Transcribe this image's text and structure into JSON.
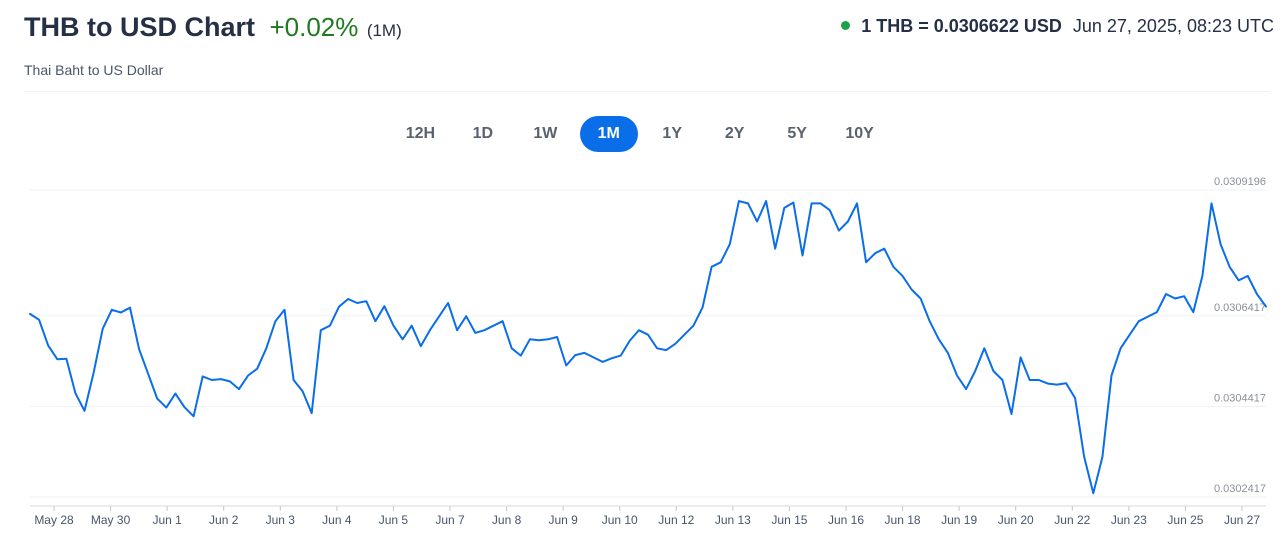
{
  "header": {
    "title": "THB to USD Chart",
    "change": "+0.02%",
    "period": "(1M)",
    "subtitle": "Thai Baht to US Dollar",
    "rate": "1 THB = 0.0306622 USD",
    "timestamp": "Jun 27, 2025, 08:23 UTC"
  },
  "colors": {
    "line": "#0a6ee8",
    "positive": "#1f7a1f",
    "status_dot": "#1aa34a",
    "active_tab": "#0a6ee8"
  },
  "tabs": [
    {
      "label": "12H",
      "active": false
    },
    {
      "label": "1D",
      "active": false
    },
    {
      "label": "1W",
      "active": false
    },
    {
      "label": "1M",
      "active": true
    },
    {
      "label": "1Y",
      "active": false
    },
    {
      "label": "2Y",
      "active": false
    },
    {
      "label": "5Y",
      "active": false
    },
    {
      "label": "10Y",
      "active": false
    }
  ],
  "chart_data": {
    "type": "line",
    "title": "",
    "xlabel": "",
    "ylabel": "",
    "grid": true,
    "y_ticks": [
      "0.0309196",
      "0.0306417",
      "0.0304417",
      "0.0302417"
    ],
    "y_tick_values": [
      0.0309196,
      0.0306417,
      0.0304417,
      0.0302417
    ],
    "ylim": [
      0.0302417,
      0.0309196
    ],
    "x_ticks": [
      "May 28",
      "May 30",
      "Jun 1",
      "Jun 2",
      "Jun 3",
      "Jun 4",
      "Jun 5",
      "Jun 7",
      "Jun 8",
      "Jun 9",
      "Jun 10",
      "Jun 12",
      "Jun 13",
      "Jun 15",
      "Jun 16",
      "Jun 18",
      "Jun 19",
      "Jun 20",
      "Jun 22",
      "Jun 23",
      "Jun 25",
      "Jun 27"
    ],
    "series": [
      {
        "values": [
          0.030646,
          0.030633,
          0.030576,
          0.030546,
          0.030547,
          0.030471,
          0.030432,
          0.030516,
          0.030613,
          0.030655,
          0.030649,
          0.03066,
          0.030568,
          0.030514,
          0.030459,
          0.030439,
          0.03047,
          0.03044,
          0.03042,
          0.030508,
          0.0305,
          0.030502,
          0.030497,
          0.03048,
          0.03051,
          0.030525,
          0.03057,
          0.03063,
          0.030655,
          0.0305,
          0.030475,
          0.030427,
          0.03061,
          0.03062,
          0.030662,
          0.030679,
          0.03067,
          0.030674,
          0.03063,
          0.030663,
          0.03062,
          0.03059,
          0.03062,
          0.030575,
          0.03061,
          0.03064,
          0.03067,
          0.03061,
          0.030641,
          0.030604,
          0.03061,
          0.03062,
          0.03063,
          0.03057,
          0.030554,
          0.03059,
          0.030588,
          0.03059,
          0.030595,
          0.030532,
          0.030555,
          0.03056,
          0.03055,
          0.03054,
          0.030548,
          0.030554,
          0.030587,
          0.03061,
          0.0306,
          0.03057,
          0.030566,
          0.03058,
          0.0306,
          0.03062,
          0.03066,
          0.03075,
          0.03076,
          0.0308,
          0.030895,
          0.03089,
          0.03085,
          0.030895,
          0.03079,
          0.03088,
          0.030892,
          0.030775,
          0.03089,
          0.03089,
          0.030875,
          0.03083,
          0.03085,
          0.03089,
          0.03076,
          0.03078,
          0.03079,
          0.03075,
          0.03073,
          0.0307,
          0.03068,
          0.03063,
          0.03059,
          0.03056,
          0.03051,
          0.03048,
          0.03052,
          0.03057,
          0.03052,
          0.0305,
          0.030425,
          0.03055,
          0.0305,
          0.0305,
          0.030492,
          0.03049,
          0.030493,
          0.03046,
          0.03033,
          0.03025,
          0.03033,
          0.03051,
          0.03057,
          0.0306,
          0.03063,
          0.03064,
          0.03065,
          0.03069,
          0.03068,
          0.030685,
          0.03065,
          0.03073,
          0.03089,
          0.0308,
          0.03075,
          0.03072,
          0.03073,
          0.03069,
          0.0306622
        ]
      }
    ]
  }
}
